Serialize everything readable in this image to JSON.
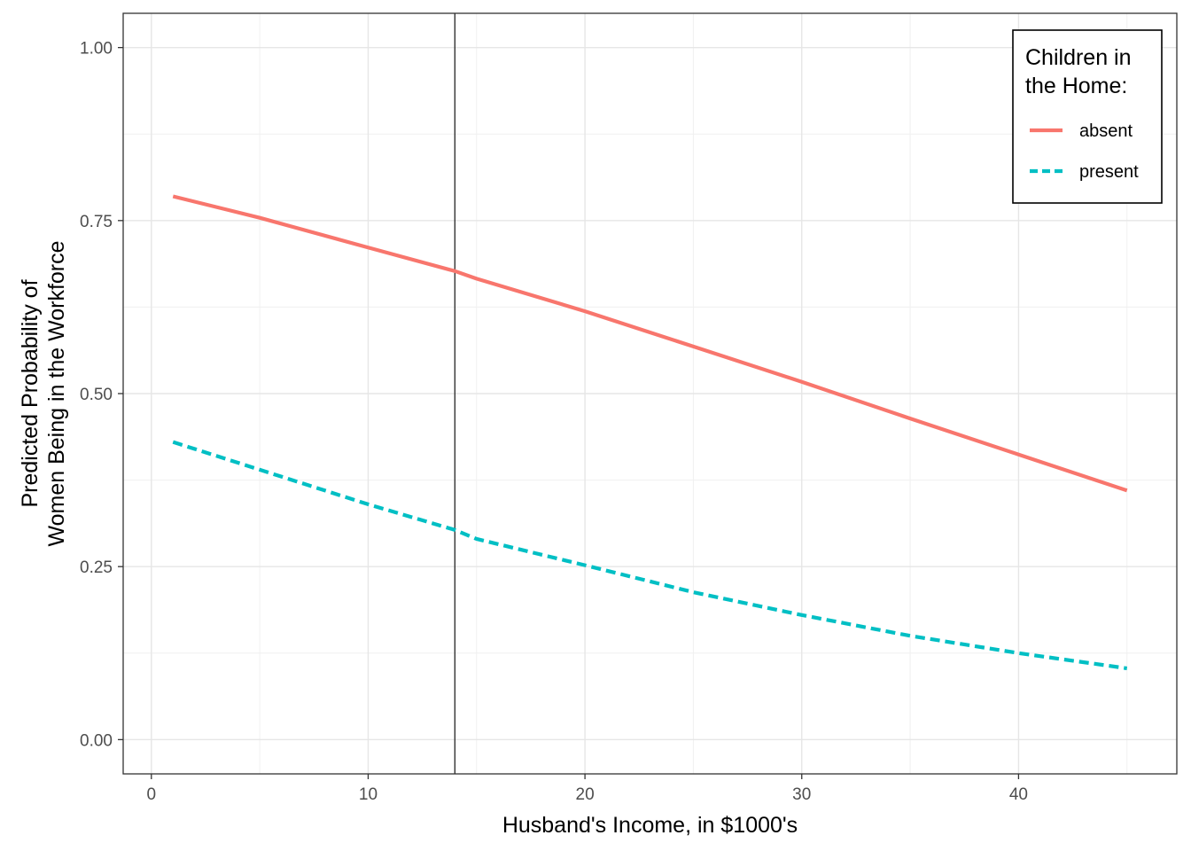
{
  "chart_data": {
    "type": "line",
    "xlabel": "Husband's Income, in $1000's",
    "ylabel_lines": [
      "Predicted Probability of",
      "Women Being in the Workforce"
    ],
    "xlim": [
      -1.3,
      47.3
    ],
    "ylim": [
      -0.0495,
      1.0495
    ],
    "x_ticks": [
      0,
      10,
      20,
      30,
      40
    ],
    "x_tick_labels": [
      "0",
      "10",
      "20",
      "30",
      "40"
    ],
    "y_ticks": [
      0,
      0.25,
      0.5,
      0.75,
      1.0
    ],
    "y_tick_labels": [
      "0.00",
      "0.25",
      "0.50",
      "0.75",
      "1.00"
    ],
    "grid": true,
    "vline_x": 14,
    "legend": {
      "title_lines": [
        "Children in",
        "the Home:"
      ],
      "position": "top-right"
    },
    "series": [
      {
        "name": "absent",
        "color": "#F8766D",
        "dash": "solid",
        "x": [
          1,
          5,
          10,
          14,
          15,
          20,
          25,
          30,
          35,
          40,
          45
        ],
        "y": [
          0.785,
          0.754,
          0.711,
          0.677,
          0.666,
          0.619,
          0.568,
          0.517,
          0.464,
          0.412,
          0.36
        ]
      },
      {
        "name": "present",
        "color": "#00BFC4",
        "dash": "dashed",
        "x": [
          1,
          5,
          10,
          14,
          15,
          20,
          25,
          30,
          35,
          40,
          45
        ],
        "y": [
          0.43,
          0.39,
          0.34,
          0.303,
          0.29,
          0.252,
          0.213,
          0.18,
          0.15,
          0.125,
          0.103
        ]
      }
    ]
  }
}
